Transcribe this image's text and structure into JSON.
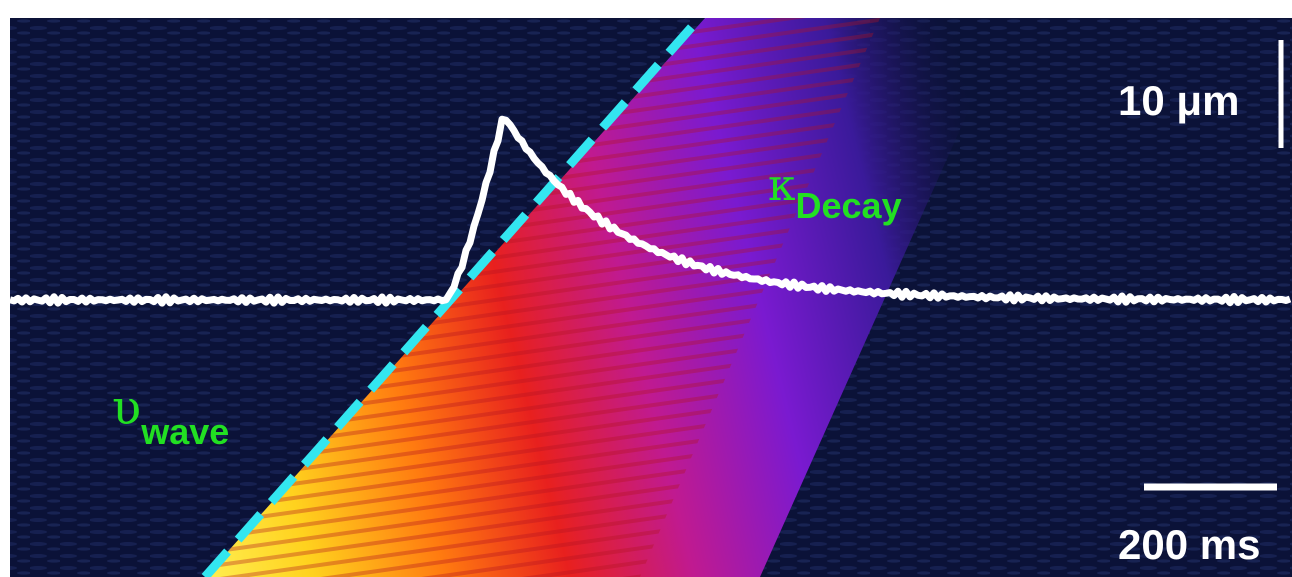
{
  "figure": {
    "kind": "fluorescence line-scan kymograph with overlaid intensity profile",
    "colormap": [
      "#0a0a3a",
      "#2a0a7a",
      "#7a1ad0",
      "#c01a90",
      "#e8201e",
      "#ff7a10",
      "#ffd21e",
      "#ffff70"
    ],
    "background_color": "#0b1238",
    "trace_color": "#ffffff",
    "fit_line_color": "#33e6f0",
    "label_color": "#22e022",
    "fit_line_style": "dashed"
  },
  "labels": {
    "scale_vertical": "10 μm",
    "scale_horizontal": "200 ms",
    "decay_symbol": "κ",
    "decay_subscript": "Decay",
    "wave_symbol": "υ",
    "wave_subscript": "wave"
  },
  "trace_profile": {
    "description": "normalized intensity over time; baseline then fast rise and exponential decay",
    "baseline": 0.0,
    "peak": 1.0,
    "rise_fraction": 0.34,
    "peak_fraction": 0.385,
    "decay_constant_fraction": 0.09
  }
}
